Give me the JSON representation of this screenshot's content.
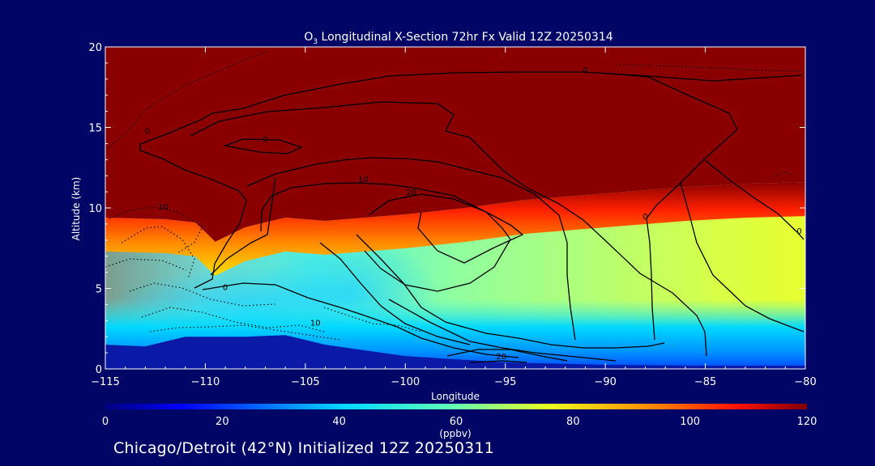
{
  "title": {
    "prefix": "O",
    "subscript": "3",
    "rest": " Longitudinal X-Section 72hr  Fx Valid 12Z 20250314"
  },
  "footer": "Chicago/Detroit (42°N) Initialized 12Z 20250311",
  "colors": {
    "background": "#010666",
    "text": "#ffffff",
    "contour": "#000000",
    "ground": "#0a19a6"
  },
  "chart_data": {
    "type": "heatmap",
    "variable": "O3",
    "xlabel": "Longitude",
    "ylabel": "Altitude (km)",
    "xlim": [
      -115,
      -80
    ],
    "ylim": [
      0,
      20
    ],
    "x_ticks": [
      -115,
      -110,
      -105,
      -100,
      -95,
      -90,
      -85,
      -80
    ],
    "x_tick_labels": [
      "−115",
      "−110",
      "−105",
      "−100",
      "−95",
      "−90",
      "−85",
      "−80"
    ],
    "y_ticks": [
      0,
      5,
      10,
      15,
      20
    ],
    "y_tick_labels": [
      "0",
      "5",
      "10",
      "15",
      "20"
    ],
    "colorbar": {
      "label": "(ppbv)",
      "min": 0,
      "max": 120,
      "ticks": [
        0,
        20,
        40,
        60,
        80,
        100,
        120
      ],
      "tick_labels": [
        "0",
        "20",
        "40",
        "60",
        "80",
        "100",
        "120"
      ],
      "colormap": "jet",
      "position": "bottom"
    },
    "tropopause_height_km": [
      {
        "lon": -115,
        "alt": 8.9
      },
      {
        "lon": -112,
        "alt": 8.8
      },
      {
        "lon": -110.5,
        "alt": 8.6
      },
      {
        "lon": -109.5,
        "alt": 7.4
      },
      {
        "lon": -108,
        "alt": 8.3
      },
      {
        "lon": -106,
        "alt": 8.9
      },
      {
        "lon": -104,
        "alt": 8.7
      },
      {
        "lon": -102,
        "alt": 8.9
      },
      {
        "lon": -100,
        "alt": 9.1
      },
      {
        "lon": -97,
        "alt": 9.5
      },
      {
        "lon": -94,
        "alt": 10.0
      },
      {
        "lon": -90,
        "alt": 10.4
      },
      {
        "lon": -86,
        "alt": 10.8
      },
      {
        "lon": -83,
        "alt": 11.0
      },
      {
        "lon": -80,
        "alt": 11.1
      }
    ],
    "ground_height_km": [
      {
        "lon": -115,
        "alt": 1.5
      },
      {
        "lon": -113,
        "alt": 1.4
      },
      {
        "lon": -111,
        "alt": 2.0
      },
      {
        "lon": -108,
        "alt": 2.0
      },
      {
        "lon": -106,
        "alt": 2.1
      },
      {
        "lon": -104,
        "alt": 1.5
      },
      {
        "lon": -100,
        "alt": 0.8
      },
      {
        "lon": -95,
        "alt": 0.4
      },
      {
        "lon": -90,
        "alt": 0.25
      },
      {
        "lon": -85,
        "alt": 0.2
      },
      {
        "lon": -80,
        "alt": 0.2
      }
    ],
    "contour_labels": [
      {
        "text": "0",
        "lon": -112.9,
        "alt": 14.6
      },
      {
        "text": "0",
        "lon": -107.0,
        "alt": 14.1
      },
      {
        "text": "0",
        "lon": -91.0,
        "alt": 18.4
      },
      {
        "text": "10",
        "lon": -112.1,
        "alt": 9.9
      },
      {
        "text": "10",
        "lon": -102.1,
        "alt": 11.6
      },
      {
        "text": "20",
        "lon": -99.7,
        "alt": 10.8
      },
      {
        "text": "0",
        "lon": -88.0,
        "alt": 9.3
      },
      {
        "text": "0",
        "lon": -80.3,
        "alt": 8.4
      },
      {
        "text": "0",
        "lon": -109.0,
        "alt": 4.9
      },
      {
        "text": "10",
        "lon": -104.5,
        "alt": 2.7
      },
      {
        "text": "20",
        "lon": -95.2,
        "alt": 0.6
      }
    ]
  }
}
